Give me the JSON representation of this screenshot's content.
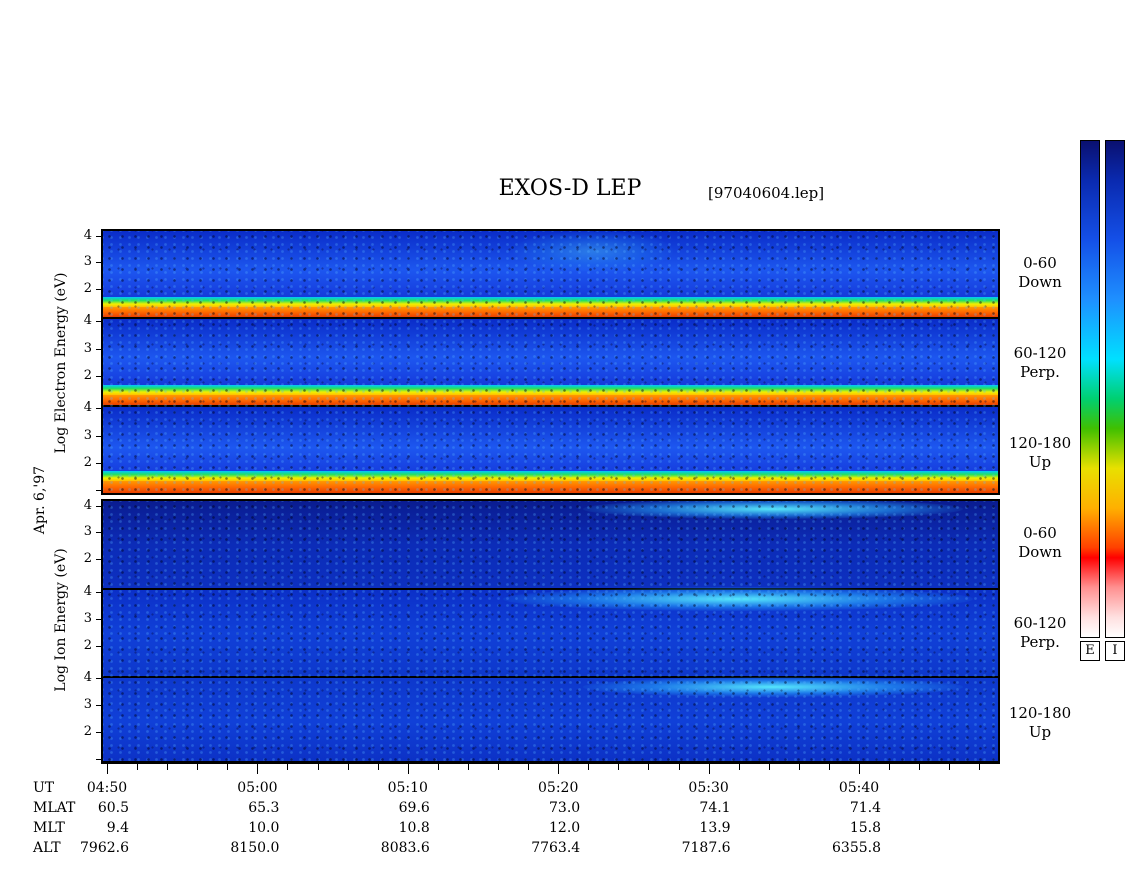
{
  "header": {
    "title": "EXOS-D LEP",
    "filename": "[97040604.lep]"
  },
  "chart_data": {
    "type": "heatmap",
    "title": "EXOS-D LEP",
    "date_label": "Apr. 6,'97",
    "xaxis": {
      "quantity": "UT",
      "ticks": [
        "04:50",
        "05:00",
        "05:10",
        "05:20",
        "05:30",
        "05:40"
      ]
    },
    "electron": {
      "ylabel": "Log Electron Energy (eV)",
      "panels": [
        {
          "pitch_angle": "0-60",
          "direction": "Down",
          "yticks": [
            "4",
            "3",
            "2"
          ]
        },
        {
          "pitch_angle": "60-120",
          "direction": "Perp.",
          "yticks": [
            "4",
            "3",
            "2"
          ]
        },
        {
          "pitch_angle": "120-180",
          "direction": "Up",
          "yticks": [
            "4",
            "3",
            "2"
          ]
        }
      ]
    },
    "ion": {
      "ylabel": "Log Ion Energy (eV)",
      "panels": [
        {
          "pitch_angle": "0-60",
          "direction": "Down",
          "yticks": [
            "4",
            "3",
            "2"
          ]
        },
        {
          "pitch_angle": "60-120",
          "direction": "Perp.",
          "yticks": [
            "4",
            "3",
            "2"
          ]
        },
        {
          "pitch_angle": "120-180",
          "direction": "Up",
          "yticks": [
            "4",
            "3",
            "2"
          ]
        }
      ]
    },
    "orbit_table": {
      "rows": [
        {
          "label": "UT",
          "values": [
            "04:50",
            "05:00",
            "05:10",
            "05:20",
            "05:30",
            "05:40"
          ]
        },
        {
          "label": "MLAT",
          "values": [
            "60.5",
            "65.3",
            "69.6",
            "73.0",
            "74.1",
            "71.4"
          ]
        },
        {
          "label": "MLT",
          "values": [
            "9.4",
            "10.0",
            "10.8",
            "12.0",
            "13.9",
            "15.8"
          ]
        },
        {
          "label": "ALT",
          "values": [
            "7962.6",
            "8150.0",
            "8083.6",
            "7763.4",
            "7187.6",
            "6355.8"
          ]
        }
      ]
    },
    "colorbars": [
      {
        "label": "E"
      },
      {
        "label": "I"
      }
    ]
  }
}
